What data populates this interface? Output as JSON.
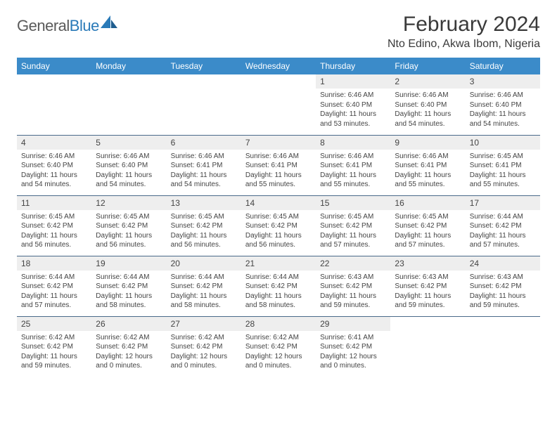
{
  "brand": {
    "text1": "General",
    "text2": "Blue",
    "text_color": "#5a5a5a",
    "accent_color": "#2a7ab8"
  },
  "header": {
    "month_title": "February 2024",
    "location": "Nto Edino, Akwa Ibom, Nigeria"
  },
  "style": {
    "header_bg": "#3b8bc9",
    "header_fg": "#ffffff",
    "daynum_bg": "#eeeeee",
    "row_border": "#4a6a8a",
    "page_bg": "#ffffff",
    "text_color": "#444444"
  },
  "weekdays": [
    "Sunday",
    "Monday",
    "Tuesday",
    "Wednesday",
    "Thursday",
    "Friday",
    "Saturday"
  ],
  "weeks": [
    [
      {
        "day": null
      },
      {
        "day": null
      },
      {
        "day": null
      },
      {
        "day": null
      },
      {
        "day": "1",
        "sunrise": "Sunrise: 6:46 AM",
        "sunset": "Sunset: 6:40 PM",
        "daylight": "Daylight: 11 hours and 53 minutes."
      },
      {
        "day": "2",
        "sunrise": "Sunrise: 6:46 AM",
        "sunset": "Sunset: 6:40 PM",
        "daylight": "Daylight: 11 hours and 54 minutes."
      },
      {
        "day": "3",
        "sunrise": "Sunrise: 6:46 AM",
        "sunset": "Sunset: 6:40 PM",
        "daylight": "Daylight: 11 hours and 54 minutes."
      }
    ],
    [
      {
        "day": "4",
        "sunrise": "Sunrise: 6:46 AM",
        "sunset": "Sunset: 6:40 PM",
        "daylight": "Daylight: 11 hours and 54 minutes."
      },
      {
        "day": "5",
        "sunrise": "Sunrise: 6:46 AM",
        "sunset": "Sunset: 6:40 PM",
        "daylight": "Daylight: 11 hours and 54 minutes."
      },
      {
        "day": "6",
        "sunrise": "Sunrise: 6:46 AM",
        "sunset": "Sunset: 6:41 PM",
        "daylight": "Daylight: 11 hours and 54 minutes."
      },
      {
        "day": "7",
        "sunrise": "Sunrise: 6:46 AM",
        "sunset": "Sunset: 6:41 PM",
        "daylight": "Daylight: 11 hours and 55 minutes."
      },
      {
        "day": "8",
        "sunrise": "Sunrise: 6:46 AM",
        "sunset": "Sunset: 6:41 PM",
        "daylight": "Daylight: 11 hours and 55 minutes."
      },
      {
        "day": "9",
        "sunrise": "Sunrise: 6:46 AM",
        "sunset": "Sunset: 6:41 PM",
        "daylight": "Daylight: 11 hours and 55 minutes."
      },
      {
        "day": "10",
        "sunrise": "Sunrise: 6:45 AM",
        "sunset": "Sunset: 6:41 PM",
        "daylight": "Daylight: 11 hours and 55 minutes."
      }
    ],
    [
      {
        "day": "11",
        "sunrise": "Sunrise: 6:45 AM",
        "sunset": "Sunset: 6:42 PM",
        "daylight": "Daylight: 11 hours and 56 minutes."
      },
      {
        "day": "12",
        "sunrise": "Sunrise: 6:45 AM",
        "sunset": "Sunset: 6:42 PM",
        "daylight": "Daylight: 11 hours and 56 minutes."
      },
      {
        "day": "13",
        "sunrise": "Sunrise: 6:45 AM",
        "sunset": "Sunset: 6:42 PM",
        "daylight": "Daylight: 11 hours and 56 minutes."
      },
      {
        "day": "14",
        "sunrise": "Sunrise: 6:45 AM",
        "sunset": "Sunset: 6:42 PM",
        "daylight": "Daylight: 11 hours and 56 minutes."
      },
      {
        "day": "15",
        "sunrise": "Sunrise: 6:45 AM",
        "sunset": "Sunset: 6:42 PM",
        "daylight": "Daylight: 11 hours and 57 minutes."
      },
      {
        "day": "16",
        "sunrise": "Sunrise: 6:45 AM",
        "sunset": "Sunset: 6:42 PM",
        "daylight": "Daylight: 11 hours and 57 minutes."
      },
      {
        "day": "17",
        "sunrise": "Sunrise: 6:44 AM",
        "sunset": "Sunset: 6:42 PM",
        "daylight": "Daylight: 11 hours and 57 minutes."
      }
    ],
    [
      {
        "day": "18",
        "sunrise": "Sunrise: 6:44 AM",
        "sunset": "Sunset: 6:42 PM",
        "daylight": "Daylight: 11 hours and 57 minutes."
      },
      {
        "day": "19",
        "sunrise": "Sunrise: 6:44 AM",
        "sunset": "Sunset: 6:42 PM",
        "daylight": "Daylight: 11 hours and 58 minutes."
      },
      {
        "day": "20",
        "sunrise": "Sunrise: 6:44 AM",
        "sunset": "Sunset: 6:42 PM",
        "daylight": "Daylight: 11 hours and 58 minutes."
      },
      {
        "day": "21",
        "sunrise": "Sunrise: 6:44 AM",
        "sunset": "Sunset: 6:42 PM",
        "daylight": "Daylight: 11 hours and 58 minutes."
      },
      {
        "day": "22",
        "sunrise": "Sunrise: 6:43 AM",
        "sunset": "Sunset: 6:42 PM",
        "daylight": "Daylight: 11 hours and 59 minutes."
      },
      {
        "day": "23",
        "sunrise": "Sunrise: 6:43 AM",
        "sunset": "Sunset: 6:42 PM",
        "daylight": "Daylight: 11 hours and 59 minutes."
      },
      {
        "day": "24",
        "sunrise": "Sunrise: 6:43 AM",
        "sunset": "Sunset: 6:42 PM",
        "daylight": "Daylight: 11 hours and 59 minutes."
      }
    ],
    [
      {
        "day": "25",
        "sunrise": "Sunrise: 6:42 AM",
        "sunset": "Sunset: 6:42 PM",
        "daylight": "Daylight: 11 hours and 59 minutes."
      },
      {
        "day": "26",
        "sunrise": "Sunrise: 6:42 AM",
        "sunset": "Sunset: 6:42 PM",
        "daylight": "Daylight: 12 hours and 0 minutes."
      },
      {
        "day": "27",
        "sunrise": "Sunrise: 6:42 AM",
        "sunset": "Sunset: 6:42 PM",
        "daylight": "Daylight: 12 hours and 0 minutes."
      },
      {
        "day": "28",
        "sunrise": "Sunrise: 6:42 AM",
        "sunset": "Sunset: 6:42 PM",
        "daylight": "Daylight: 12 hours and 0 minutes."
      },
      {
        "day": "29",
        "sunrise": "Sunrise: 6:41 AM",
        "sunset": "Sunset: 6:42 PM",
        "daylight": "Daylight: 12 hours and 0 minutes."
      },
      {
        "day": null
      },
      {
        "day": null
      }
    ]
  ]
}
